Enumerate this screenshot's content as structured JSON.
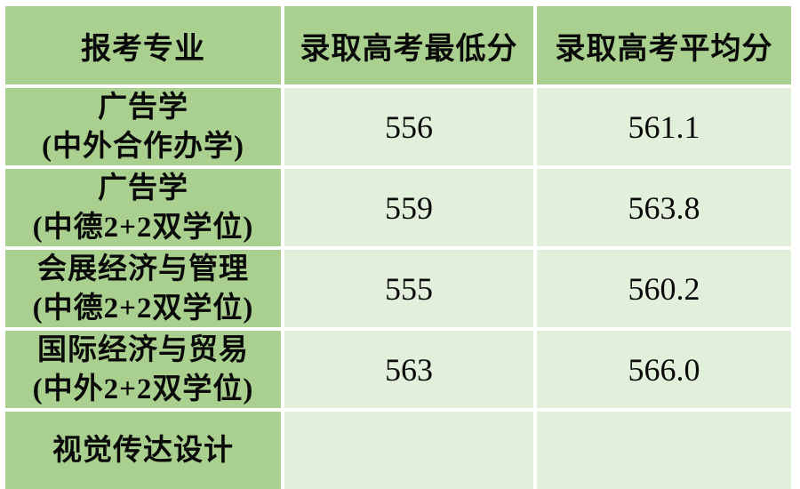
{
  "table": {
    "title_semantic": "admission-scores-table",
    "columns": [
      {
        "label": "报考专业"
      },
      {
        "label": "录取高考最低分"
      },
      {
        "label": "录取高考平均分"
      }
    ],
    "rows": [
      {
        "major": "广告学",
        "note": "(中外合作办学)",
        "min_score": "556",
        "avg_score": "561.1"
      },
      {
        "major": "广告学",
        "note": "(中德2+2双学位)",
        "min_score": "559",
        "avg_score": "563.8"
      },
      {
        "major": "会展经济与管理",
        "note": "(中德2+2双学位)",
        "min_score": "555",
        "avg_score": "560.2"
      },
      {
        "major": "国际经济与贸易",
        "note": "(中外2+2双学位)",
        "min_score": "563",
        "avg_score": "566.0"
      },
      {
        "major": "视觉传达设计",
        "note": "",
        "min_score": "",
        "avg_score": ""
      }
    ],
    "colors": {
      "header_bg": "#a9d08e",
      "label_bg": "#a9d08e",
      "data_bg": "#e2efda",
      "gap": "#ffffff",
      "text": "#0a0a0a"
    }
  }
}
